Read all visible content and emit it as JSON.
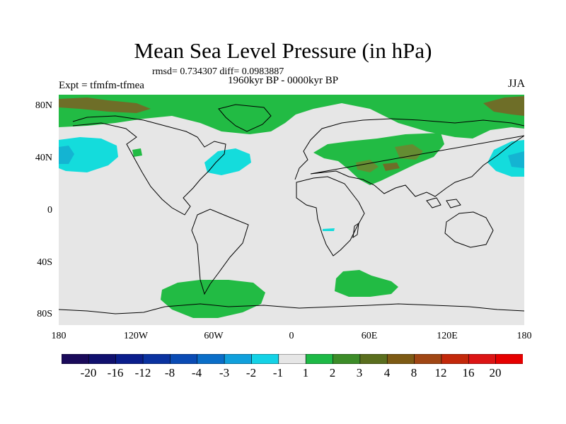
{
  "header": {
    "title": "Mean Sea Level Pressure (in hPa)",
    "stats": "rmsd= 0.734307 diff= 0.0983887",
    "period": "1960kyr BP - 0000kyr BP",
    "experiment": "Expt = tfmfm-tfmea",
    "season": "JJA"
  },
  "axes": {
    "lat_ticks": [
      "80N",
      "40N",
      "0",
      "40S",
      "80S"
    ],
    "lon_ticks": [
      "180",
      "120W",
      "60W",
      "0",
      "60E",
      "120E",
      "180"
    ]
  },
  "colorbar": {
    "labels": [
      "-20",
      "-16",
      "-12",
      "-8",
      "-4",
      "-3",
      "-2",
      "-1",
      "1",
      "2",
      "3",
      "4",
      "8",
      "12",
      "16",
      "20"
    ],
    "colors": [
      "#1a0a5a",
      "#10106e",
      "#0a1e8c",
      "#0a32a0",
      "#0a4bb4",
      "#0a6ec8",
      "#10a0dc",
      "#14d2e6",
      "#e6e6e6",
      "#1eb946",
      "#3c8c28",
      "#5a6e1e",
      "#7d5a14",
      "#a04614",
      "#c3280a",
      "#dc1414",
      "#e60000"
    ]
  },
  "map_colors": {
    "background": "#e6e6e6",
    "positive_1": "#22bb44",
    "positive_2": "#648c32",
    "positive_3": "#6e6e28",
    "negative_1": "#14dcdc",
    "negative_2": "#14b4d2",
    "coast": "#000000"
  }
}
